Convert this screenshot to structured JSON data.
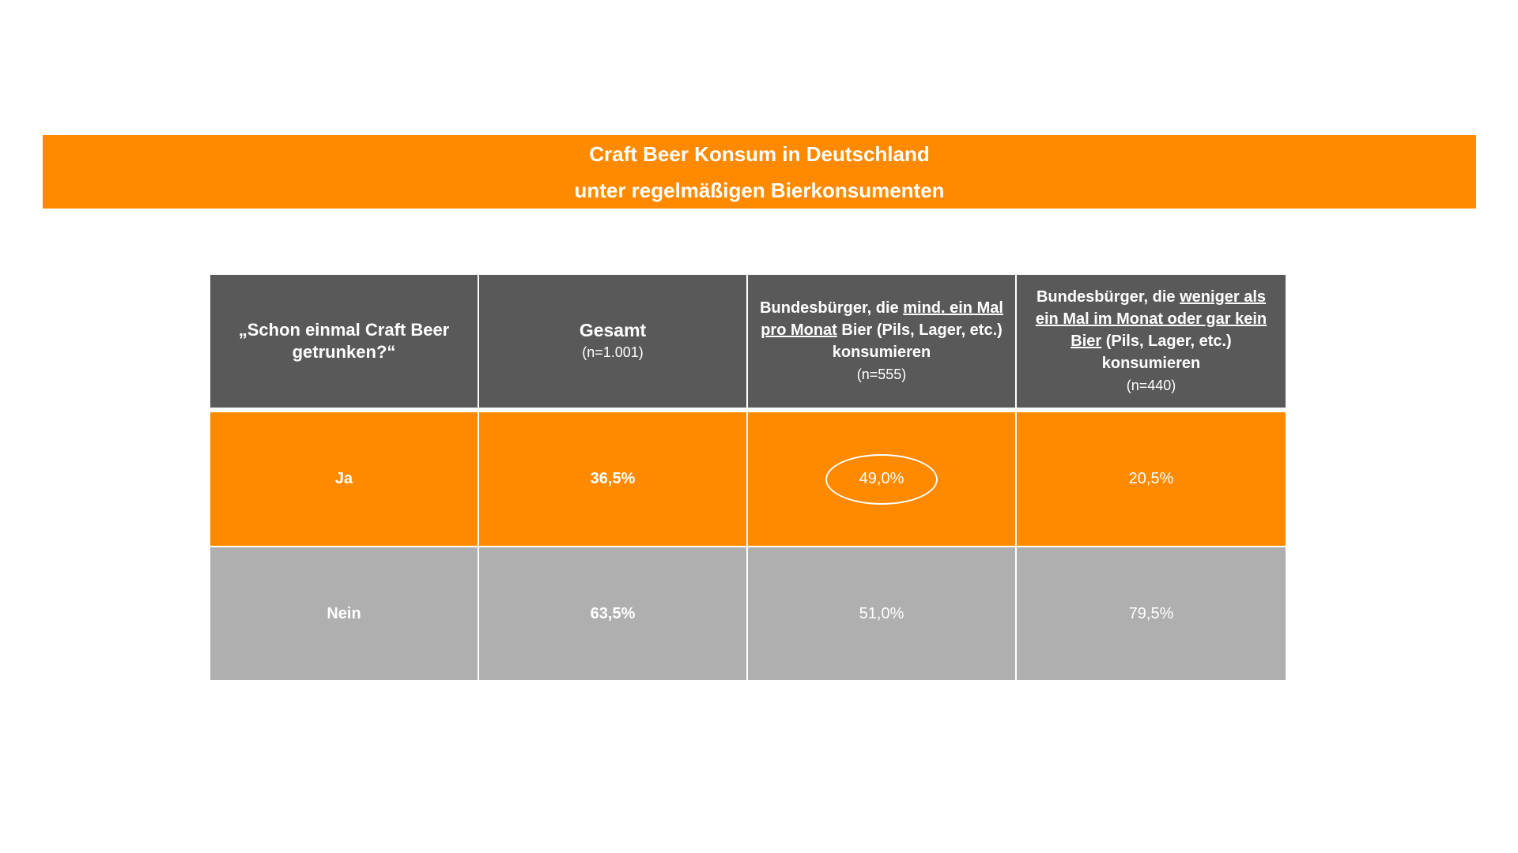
{
  "title": {
    "line1": "Craft Beer Konsum in Deutschland",
    "line2": "unter regelmäßigen Bierkonsumenten"
  },
  "header": {
    "question": "„Schon einmal Craft Beer getrunken?“",
    "col1": {
      "label": "Gesamt",
      "n": "(n=1.001)"
    },
    "col2": {
      "pre": "Bundesbürger, die ",
      "underlined": "mind. ein Mal pro Monat",
      "post": " Bier (Pils, Lager, etc.) konsumieren",
      "n": "(n=555)"
    },
    "col3": {
      "pre": "Bundesbürger, die ",
      "underlined": "weniger als ein Mal im Monat oder gar kein Bier",
      "post": " (Pils, Lager, etc.) konsumieren",
      "n": "(n=440)"
    }
  },
  "rows": [
    {
      "label": "Ja",
      "values": [
        "36,5%",
        "49,0%",
        "20,5%"
      ],
      "highlighted": "49,0%"
    },
    {
      "label": "Nein",
      "values": [
        "63,5%",
        "51,0%",
        "79,5%"
      ]
    }
  ],
  "colors": {
    "orange": "#ff8a00",
    "dark": "#595959",
    "grey": "#afafaf"
  }
}
